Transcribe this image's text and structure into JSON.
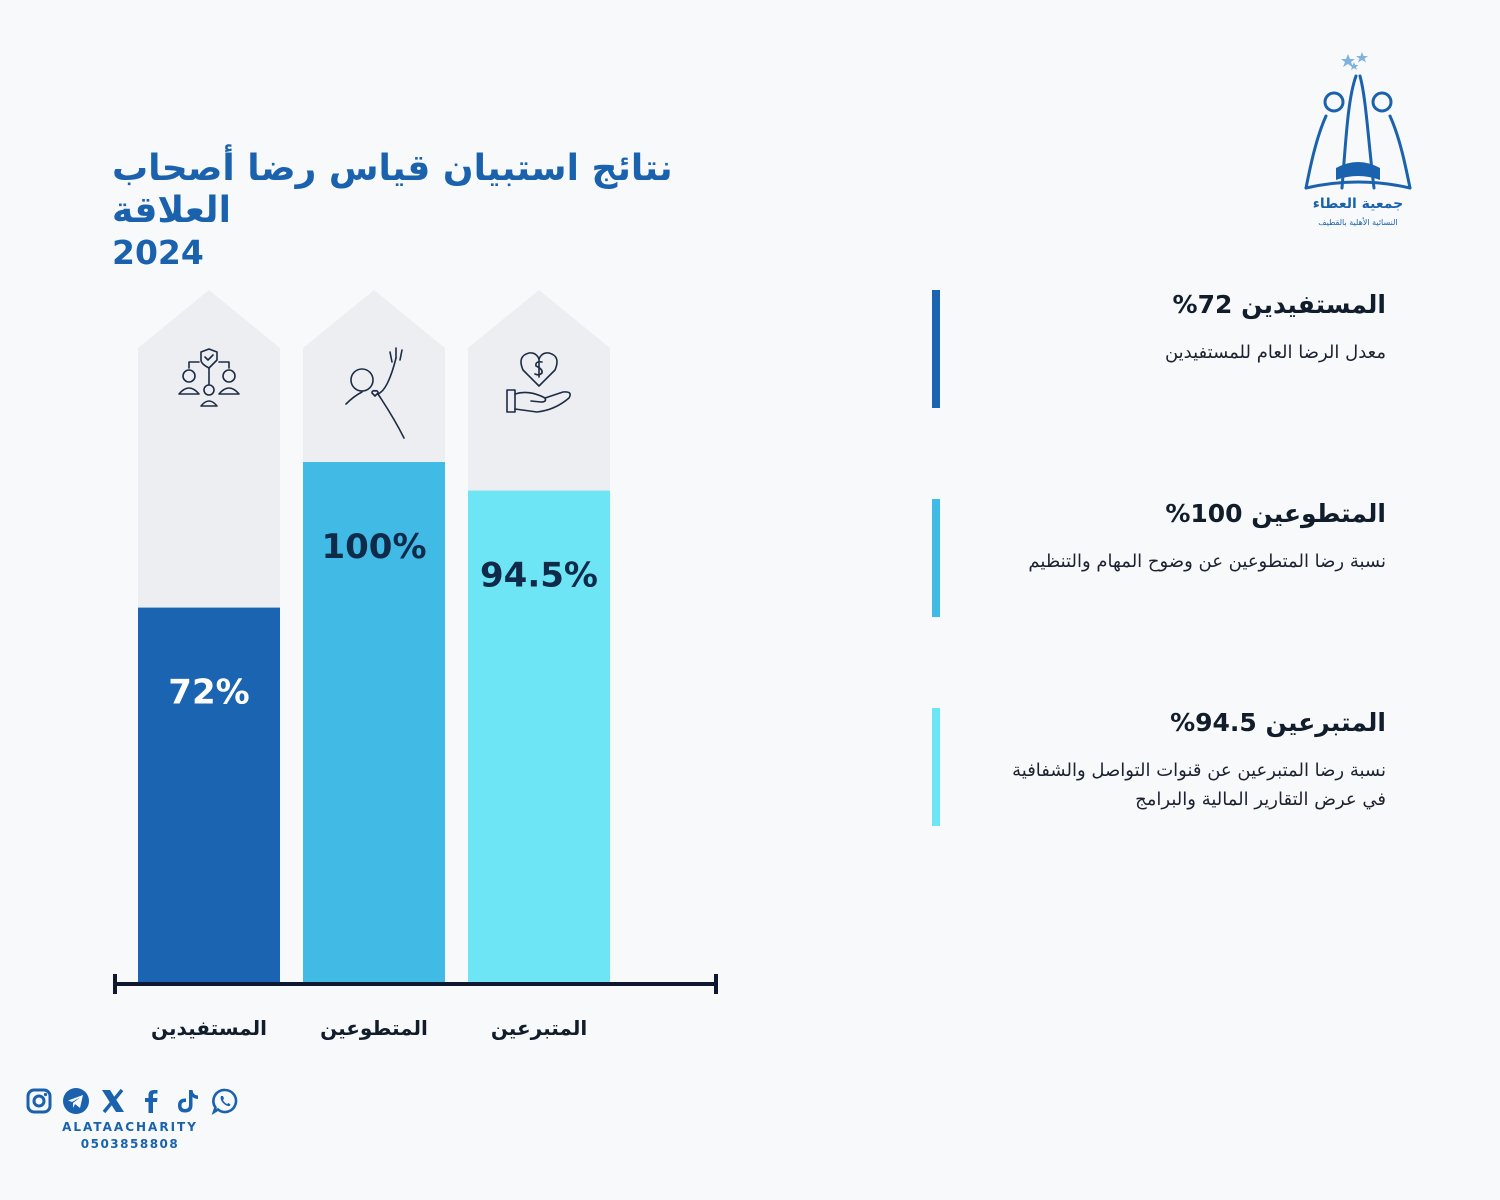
{
  "title": {
    "line1": "نتائج استبيان قياس رضا أصحاب العلاقة",
    "line2": "2024"
  },
  "organization": {
    "name": "جمعية العطاء",
    "subtitle": "النسائية الأهلية بالقطيف"
  },
  "chart_data": {
    "type": "bar",
    "categories": [
      "المستفيدين",
      "المتطوعين",
      "المتبرعين"
    ],
    "values": [
      72,
      100,
      94.5
    ],
    "value_labels": [
      "72%",
      "100%",
      "94.5%"
    ],
    "ylim": [
      0,
      100
    ],
    "colors": [
      "#1a64b2",
      "#41bbe6",
      "#6de5f5"
    ],
    "icons": [
      "people-shield-icon",
      "hand-waving-icon",
      "heart-in-hand-icon"
    ]
  },
  "legend": [
    {
      "heading": "المستفيدين 72%",
      "description": "معدل الرضا العام للمستفيدين",
      "color": "#1a64b2"
    },
    {
      "heading": "المتطوعين 100%",
      "description": "نسبة رضا المتطوعين عن وضوح المهام والتنظيم",
      "color": "#41bbe6"
    },
    {
      "heading": "المتبرعين 94.5%",
      "description": "نسبة رضا المتبرعين عن قنوات التواصل والشفافية في عرض التقارير المالية والبرامج",
      "color": "#6de5f5"
    }
  ],
  "social": {
    "icons": [
      "instagram-icon",
      "telegram-icon",
      "x-icon",
      "facebook-icon",
      "tiktok-icon",
      "whatsapp-icon"
    ],
    "handle": "ALATAACHARITY",
    "phone": "0503858808"
  }
}
